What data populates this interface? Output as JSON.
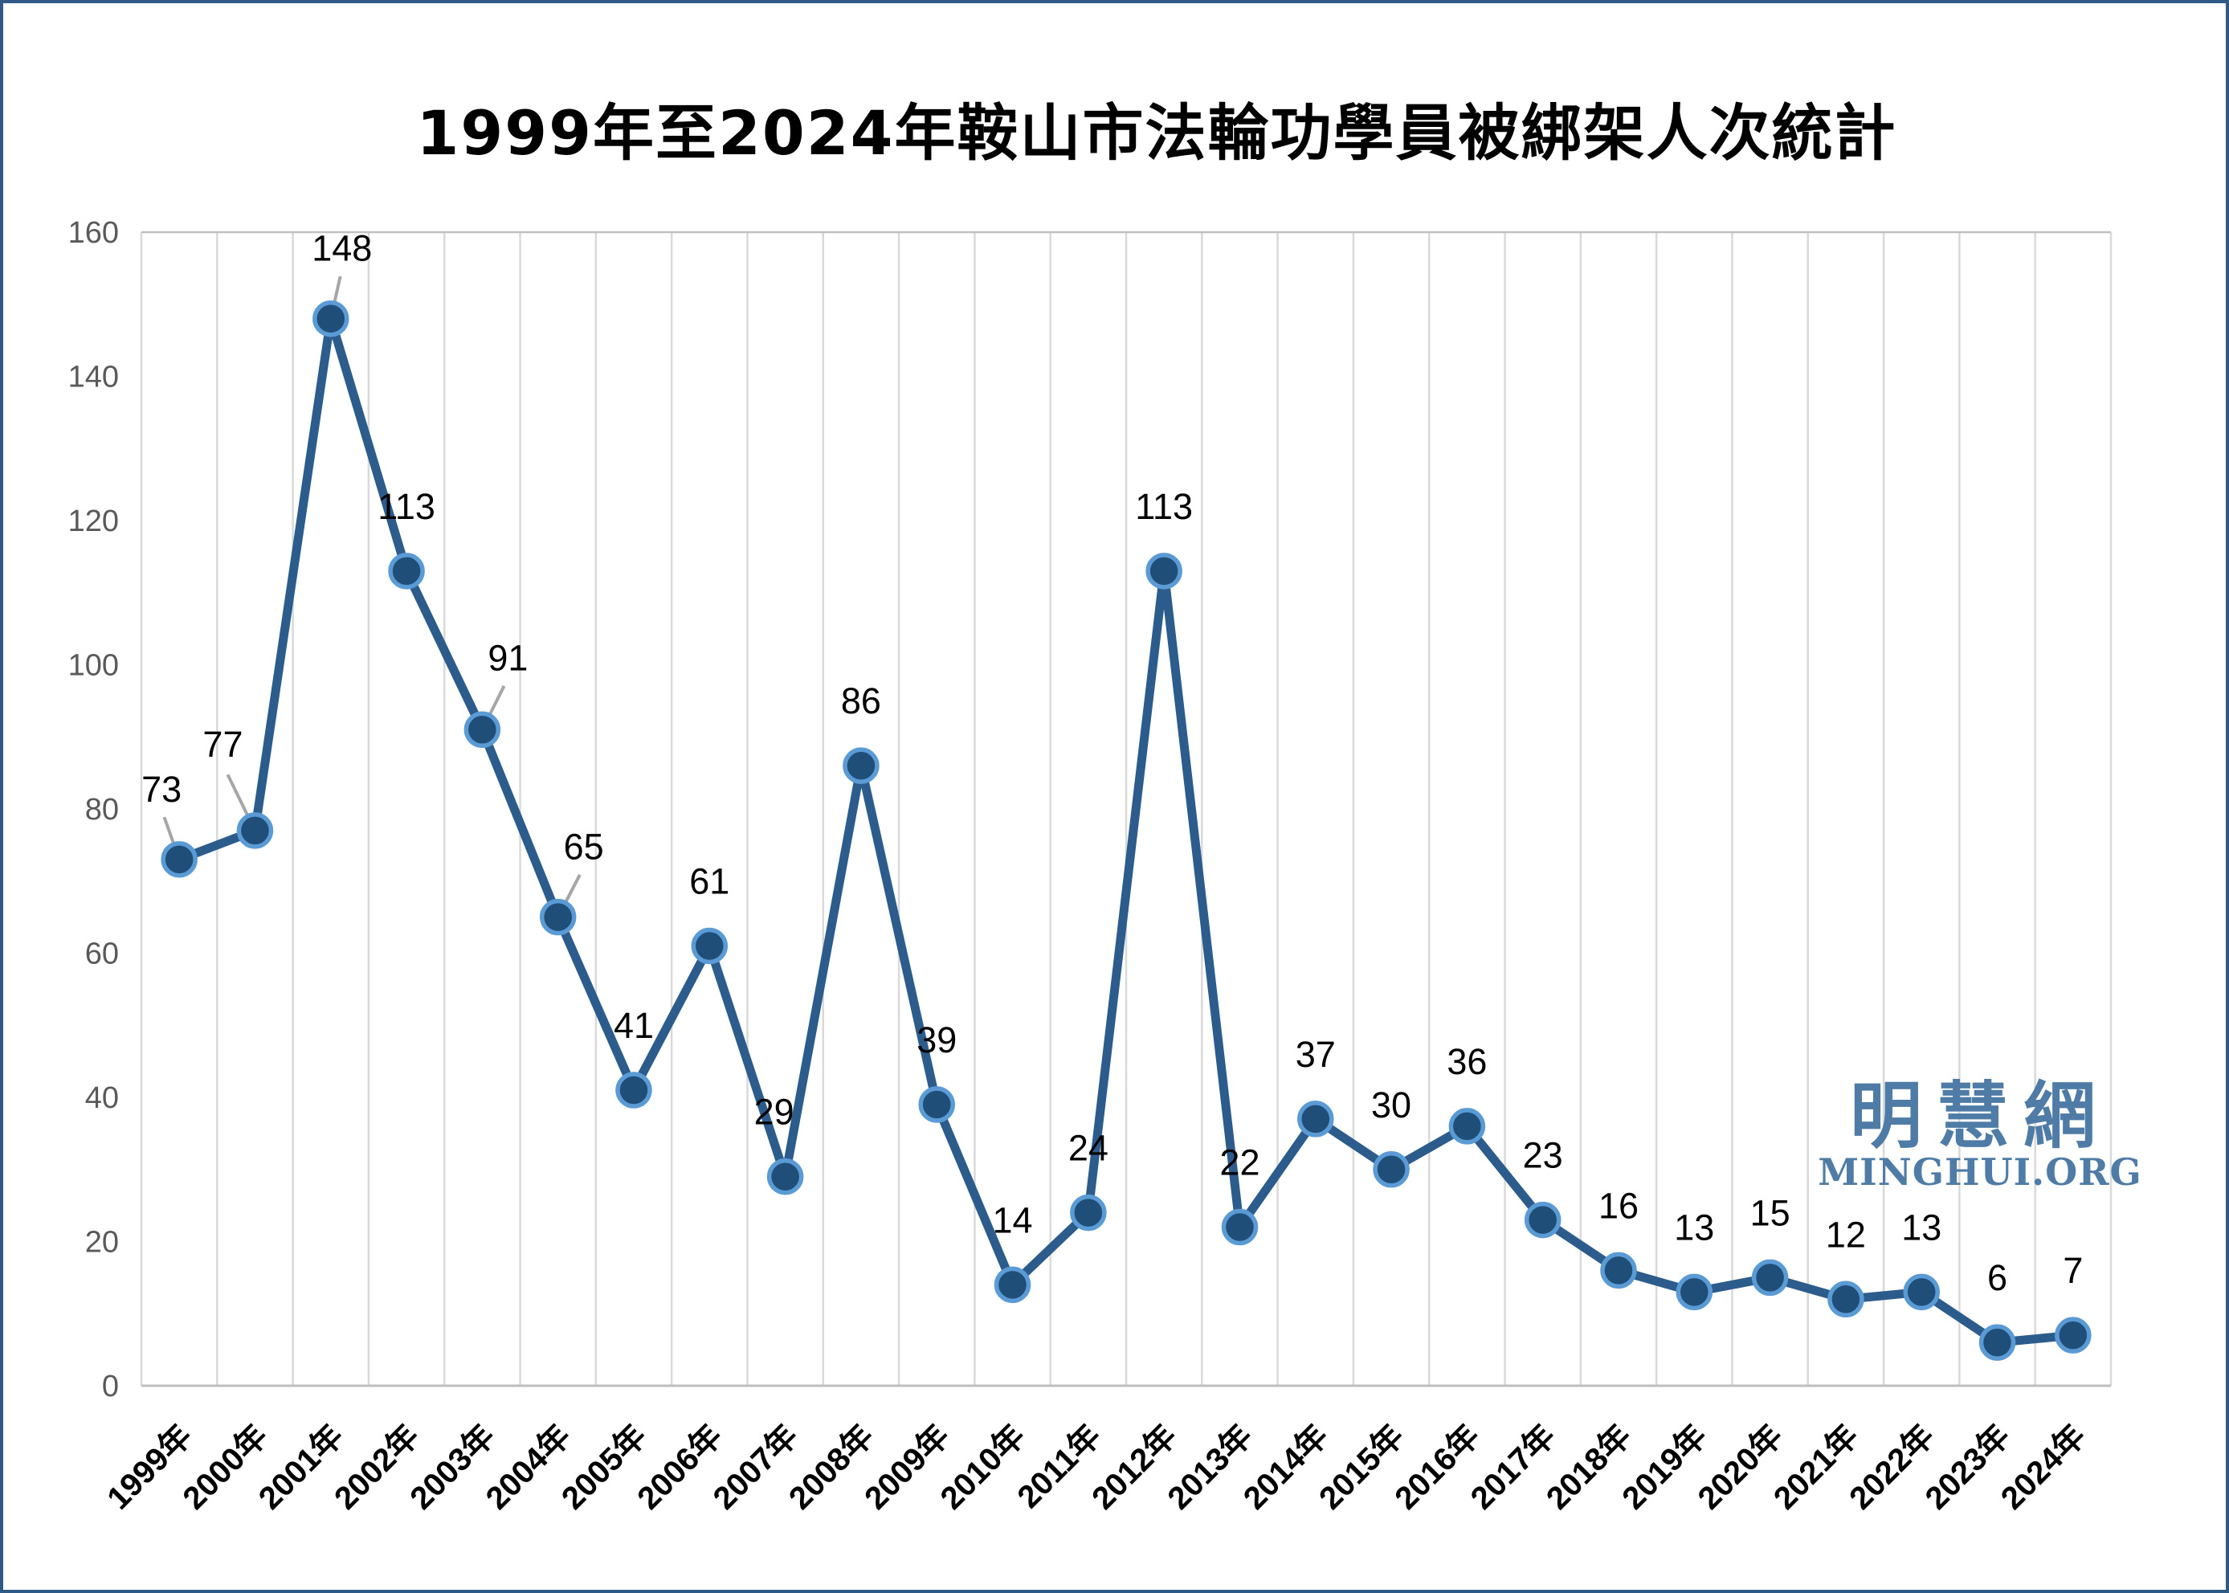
{
  "title": "1999年至2024年鞍山市法輪功學員被綁架人次統計",
  "watermark": {
    "cjk": "明慧網",
    "latin": "MINGHUI.ORG",
    "color": "#4e7ca6"
  },
  "colors": {
    "frame_border": "#2e5a85",
    "line": "#2c5c8c",
    "marker_fill": "#1f4e79",
    "marker_ring": "#5b9bd5",
    "gridline": "#d9d9d9",
    "plot_border": "#c0c0c0",
    "axis_line": "#bfbfbf",
    "tick_label": "#595959",
    "data_label": "#000000",
    "leader_line": "#a6a6a6",
    "x_label": "#000000",
    "title_color": "#000000",
    "background": "#ffffff"
  },
  "chart_data": {
    "type": "line",
    "title": "1999年至2024年鞍山市法輪功學員被綁架人次統計",
    "categories": [
      "1999年",
      "2000年",
      "2001年",
      "2002年",
      "2003年",
      "2004年",
      "2005年",
      "2006年",
      "2007年",
      "2008年",
      "2009年",
      "2010年",
      "2011年",
      "2012年",
      "2013年",
      "2014年",
      "2015年",
      "2016年",
      "2017年",
      "2018年",
      "2019年",
      "2020年",
      "2021年",
      "2022年",
      "2023年",
      "2024年"
    ],
    "values": [
      73,
      77,
      148,
      113,
      91,
      65,
      41,
      61,
      29,
      86,
      39,
      14,
      24,
      113,
      22,
      37,
      30,
      36,
      23,
      16,
      13,
      15,
      12,
      13,
      6,
      7
    ],
    "xlabel": "",
    "ylabel": "",
    "ylim": [
      0,
      160
    ],
    "yticks": [
      0,
      20,
      40,
      60,
      80,
      100,
      120,
      140,
      160
    ],
    "grid": "vertical-only",
    "legend": "none",
    "data_labels": "all points, value shown above marker",
    "leader_indices": [
      0,
      1,
      2,
      4,
      5
    ],
    "label_offsets": {
      "0": [
        -22,
        -62
      ],
      "1": [
        -40,
        -82
      ],
      "2": [
        14,
        -62
      ],
      "4": [
        32,
        -64
      ],
      "5": [
        32,
        -62
      ],
      "8": [
        -14,
        -55
      ]
    },
    "default_label_offset": [
      0,
      -55
    ]
  },
  "layout_note": ""
}
